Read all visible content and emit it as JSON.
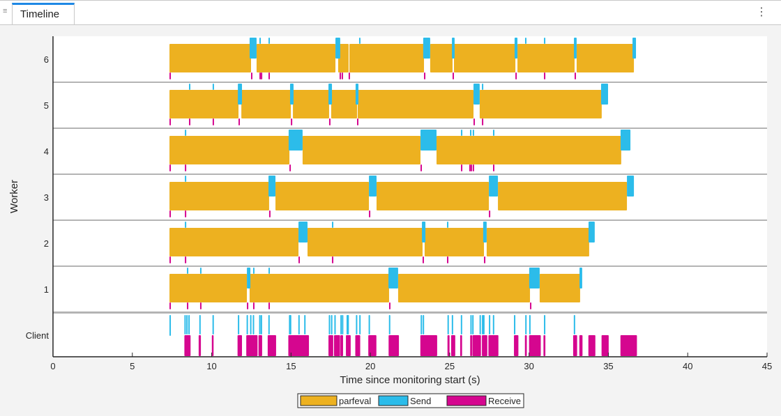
{
  "tab": {
    "title": "Timeline",
    "grip_icon": "grip-icon",
    "menu_icon": "kebab-menu-icon"
  },
  "colors": {
    "parfeval": "#edb120",
    "send": "#2cbcea",
    "receive": "#d5068f",
    "separator": "#b4b4b4"
  },
  "chart_data": {
    "type": "timeline",
    "xlabel": "Time since monitoring start (s)",
    "ylabel": "Worker",
    "xlim": [
      0,
      45
    ],
    "xticks": [
      0,
      5,
      10,
      15,
      20,
      25,
      30,
      35,
      40,
      45
    ],
    "rows": [
      "6",
      "5",
      "4",
      "3",
      "2",
      "1",
      "Client"
    ],
    "legend": [
      "parfeval",
      "Send",
      "Receive"
    ],
    "legend_placement": "bottom",
    "workers": [
      {
        "name": "6",
        "parfeval": [
          [
            7.34,
            12.48
          ],
          [
            12.83,
            17.8
          ],
          [
            17.97,
            18.63
          ],
          [
            18.68,
            23.38
          ],
          [
            23.77,
            25.18
          ],
          [
            25.27,
            29.14
          ],
          [
            29.27,
            32.87
          ],
          [
            33.0,
            36.61
          ]
        ],
        "send": [
          [
            12.39,
            12.83
          ],
          [
            17.8,
            18.1
          ],
          [
            23.33,
            23.77
          ],
          [
            25.14,
            25.31
          ],
          [
            29.09,
            29.27
          ],
          [
            32.83,
            33.0
          ],
          [
            36.52,
            36.74
          ],
          [
            13.01,
            13.01
          ],
          [
            13.58,
            13.58
          ],
          [
            19.29,
            19.29
          ],
          [
            29.75,
            29.75
          ],
          [
            30.94,
            30.94
          ]
        ],
        "receive": [
          7.34,
          12.48,
          13.01,
          13.1,
          13.58,
          18.06,
          18.19,
          18.63,
          23.38,
          25.18,
          29.14,
          30.94,
          32.87
        ]
      },
      {
        "name": "5",
        "parfeval": [
          [
            7.34,
            11.69
          ],
          [
            11.87,
            14.99
          ],
          [
            15.12,
            17.4
          ],
          [
            17.53,
            19.16
          ],
          [
            19.2,
            26.5
          ],
          [
            26.89,
            34.58
          ]
        ],
        "send": [
          [
            11.65,
            11.91
          ],
          [
            14.94,
            15.16
          ],
          [
            17.36,
            17.58
          ],
          [
            19.07,
            19.25
          ],
          [
            26.5,
            26.89
          ],
          [
            34.54,
            34.98
          ],
          [
            8.57,
            8.57
          ],
          [
            10.06,
            10.06
          ],
          [
            27.03,
            27.03
          ]
        ],
        "receive": [
          7.34,
          8.57,
          10.06,
          11.69,
          14.99,
          17.4,
          19.16,
          26.5,
          27.03
        ]
      },
      {
        "name": "4",
        "parfeval": [
          [
            7.34,
            14.9
          ],
          [
            15.73,
            23.16
          ],
          [
            24.17,
            35.81
          ]
        ],
        "send": [
          [
            14.85,
            15.73
          ],
          [
            23.16,
            24.17
          ],
          [
            35.77,
            36.39
          ],
          [
            8.31,
            8.31
          ],
          [
            25.71,
            25.71
          ],
          [
            26.28,
            26.28
          ],
          [
            26.45,
            26.45
          ],
          [
            27.73,
            27.73
          ]
        ],
        "receive": [
          7.34,
          8.31,
          14.9,
          23.16,
          25.71,
          26.23,
          26.32,
          26.45,
          27.73
        ]
      },
      {
        "name": "3",
        "parfeval": [
          [
            7.34,
            13.62
          ],
          [
            14.02,
            19.91
          ],
          [
            20.39,
            27.47
          ],
          [
            28.04,
            36.17
          ]
        ],
        "send": [
          [
            13.58,
            14.02
          ],
          [
            19.91,
            20.39
          ],
          [
            27.47,
            28.04
          ],
          [
            36.17,
            36.61
          ],
          [
            8.31,
            8.31
          ]
        ],
        "receive": [
          7.34,
          8.31,
          13.62,
          19.91,
          27.47
        ]
      },
      {
        "name": "2",
        "parfeval": [
          [
            7.34,
            15.47
          ],
          [
            16.04,
            23.29
          ],
          [
            23.42,
            27.16
          ],
          [
            27.33,
            33.79
          ]
        ],
        "send": [
          [
            15.47,
            16.04
          ],
          [
            23.25,
            23.47
          ],
          [
            27.11,
            27.33
          ],
          [
            33.75,
            34.14
          ],
          [
            8.31,
            8.31
          ],
          [
            17.58,
            17.58
          ],
          [
            24.83,
            24.83
          ]
        ],
        "receive": [
          7.34,
          8.31,
          15.47,
          17.58,
          23.29,
          24.83,
          27.16
        ]
      },
      {
        "name": "1",
        "parfeval": [
          [
            7.34,
            12.22
          ],
          [
            12.39,
            21.18
          ],
          [
            21.75,
            30.06
          ],
          [
            30.67,
            33.22
          ]
        ],
        "send": [
          [
            12.22,
            12.44
          ],
          [
            21.14,
            21.75
          ],
          [
            30.01,
            30.67
          ],
          [
            33.18,
            33.35
          ],
          [
            8.44,
            8.44
          ],
          [
            9.27,
            9.27
          ],
          [
            12.61,
            12.61
          ],
          [
            13.58,
            13.58
          ]
        ],
        "receive": [
          7.34,
          8.44,
          9.27,
          12.22,
          12.61,
          13.58,
          21.18,
          30.06
        ]
      }
    ],
    "client": {
      "send": [
        7.34,
        8.28,
        8.4,
        8.53,
        9.22,
        10.05,
        11.65,
        12.2,
        12.42,
        12.59,
        12.99,
        13.09,
        13.57,
        14.87,
        14.93,
        15.46,
        15.83,
        17.38,
        17.52,
        17.73,
        18.11,
        18.21,
        18.5,
        18.56,
        19.09,
        19.3,
        19.89,
        21.17,
        23.17,
        23.3,
        24.86,
        25.13,
        25.7,
        26.3,
        26.42,
        26.88,
        27.03,
        27.11,
        27.47,
        27.72,
        29.05,
        29.76,
        30.01,
        30.94,
        32.82
      ],
      "receive": [
        [
          8.28,
          8.67
        ],
        [
          9.18,
          9.32
        ],
        [
          10.01,
          10.12
        ],
        [
          11.63,
          11.91
        ],
        [
          12.18,
          12.89
        ],
        [
          12.95,
          13.18
        ],
        [
          13.53,
          14.06
        ],
        [
          14.83,
          16.13
        ],
        [
          17.36,
          17.66
        ],
        [
          17.71,
          18.09
        ],
        [
          18.11,
          18.28
        ],
        [
          18.46,
          18.76
        ],
        [
          19.05,
          19.36
        ],
        [
          19.87,
          20.38
        ],
        [
          21.15,
          21.8
        ],
        [
          23.15,
          24.21
        ],
        [
          24.86,
          24.99
        ],
        [
          25.09,
          25.35
        ],
        [
          25.66,
          25.78
        ],
        [
          26.29,
          26.41
        ],
        [
          26.43,
          26.97
        ],
        [
          27.03,
          27.37
        ],
        [
          27.44,
          28.07
        ],
        [
          29.05,
          29.33
        ],
        [
          29.74,
          29.86
        ],
        [
          30.0,
          30.74
        ],
        [
          30.91,
          31.03
        ],
        [
          32.78,
          33.03
        ],
        [
          33.17,
          33.37
        ],
        [
          33.74,
          34.18
        ],
        [
          34.57,
          35.02
        ],
        [
          35.76,
          36.8
        ]
      ]
    }
  }
}
